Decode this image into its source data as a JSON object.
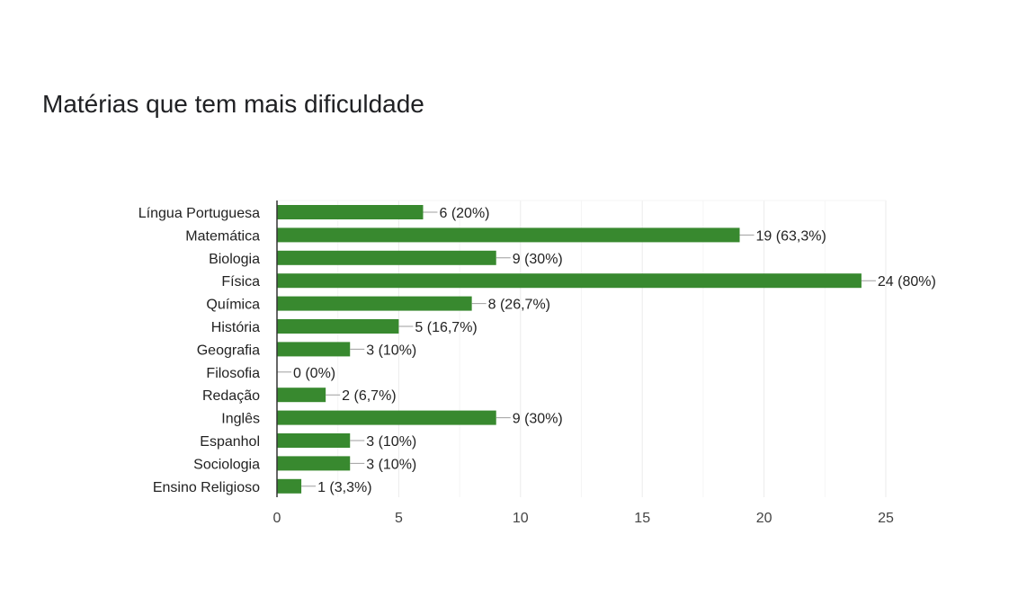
{
  "title": "Matérias que tem mais dificuldade",
  "chart_data": {
    "type": "bar",
    "orientation": "horizontal",
    "title": "Matérias que tem mais dificuldade",
    "categories": [
      "Língua Portuguesa",
      "Matemática",
      "Biologia",
      "Física",
      "Química",
      "História",
      "Geografia",
      "Filosofia",
      "Redação",
      "Inglês",
      "Espanhol",
      "Sociologia",
      "Ensino Religioso"
    ],
    "values": [
      6,
      19,
      9,
      24,
      8,
      5,
      3,
      0,
      2,
      9,
      3,
      3,
      1
    ],
    "data_labels": [
      "6 (20%)",
      "19 (63,3%)",
      "9 (30%)",
      "24 (80%)",
      "8 (26,7%)",
      "5 (16,7%)",
      "3 (10%)",
      "0 (0%)",
      "2 (6,7%)",
      "9 (30%)",
      "3 (10%)",
      "3 (10%)",
      "1 (3,3%)"
    ],
    "xlim": [
      0,
      25
    ],
    "xticks": [
      0,
      5,
      10,
      15,
      20,
      25
    ],
    "grid": true,
    "colors": {
      "bar": "#38892f",
      "leader": "#9e9e9e",
      "grid": "#ebebeb",
      "axis": "#333333"
    }
  }
}
